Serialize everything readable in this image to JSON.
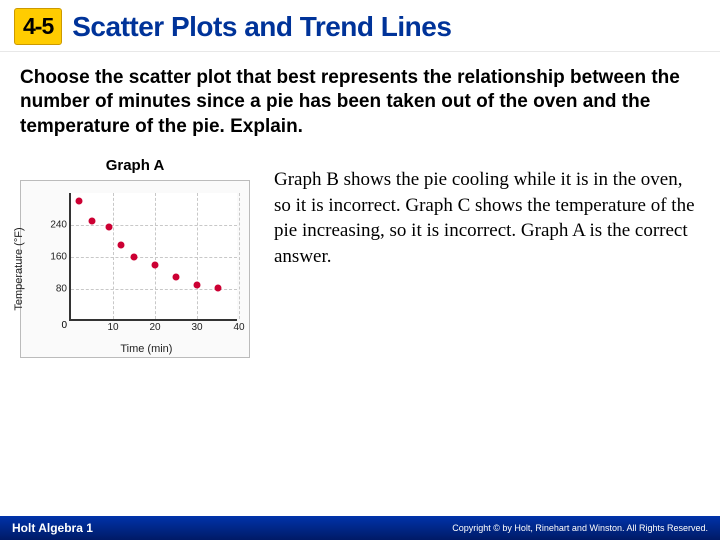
{
  "header": {
    "section": "4-5",
    "title": "Scatter Plots and Trend Lines"
  },
  "question": "Choose the scatter plot that best represents the relationship between the number of minutes since a pie has been taken out of the oven and the temperature of the pie. Explain.",
  "graph": {
    "title": "Graph A",
    "type": "scatter",
    "xlabel": "Time (min)",
    "ylabel": "Temperature (°F)",
    "xlim": [
      0,
      40
    ],
    "ylim": [
      0,
      320
    ],
    "xticks": [
      10,
      20,
      30,
      40
    ],
    "yticks": [
      80,
      160,
      240
    ],
    "grid_color": "#c8c8c8",
    "background_color": "#ffffff",
    "point_color": "#cc0033",
    "point_radius": 3.5,
    "points": [
      {
        "x": 2,
        "y": 300
      },
      {
        "x": 5,
        "y": 250
      },
      {
        "x": 9,
        "y": 235
      },
      {
        "x": 12,
        "y": 190
      },
      {
        "x": 15,
        "y": 160
      },
      {
        "x": 20,
        "y": 140
      },
      {
        "x": 25,
        "y": 110
      },
      {
        "x": 30,
        "y": 90
      },
      {
        "x": 35,
        "y": 82
      }
    ]
  },
  "answer": "Graph B shows the pie cooling while it is in the oven, so it is incorrect. Graph C shows the temperature of the pie increasing, so it is incorrect. Graph A is the correct answer.",
  "footer": {
    "left": "Holt Algebra 1",
    "right": "Copyright © by Holt, Rinehart and Winston. All Rights Reserved."
  }
}
